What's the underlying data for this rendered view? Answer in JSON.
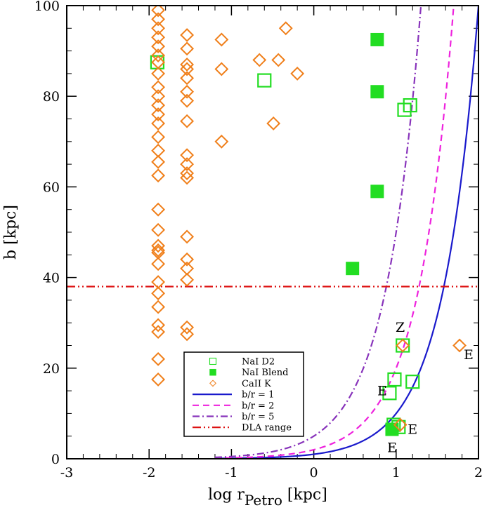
{
  "chart_data": {
    "type": "scatter",
    "title": "",
    "xlabel": "log r",
    "xlabel_sub": "Petro",
    "xlabel_unit": " [kpc]",
    "ylabel": "b [kpc]",
    "xlim": [
      -3,
      2
    ],
    "ylim": [
      0,
      100
    ],
    "xticks": [
      -3,
      -2,
      -1,
      0,
      1,
      2
    ],
    "yticks": [
      0,
      20,
      40,
      60,
      80,
      100
    ],
    "legend_position": "lower-center",
    "dla_range_b": 38,
    "series": [
      {
        "name": "NaI D2",
        "marker": "square-open",
        "color": "#22dd22",
        "points": [
          {
            "x": -1.9,
            "y": 87.5
          },
          {
            "x": -0.6,
            "y": 83.5
          },
          {
            "x": 1.1,
            "y": 77
          },
          {
            "x": 1.17,
            "y": 78
          },
          {
            "x": 1.08,
            "y": 25
          },
          {
            "x": 0.98,
            "y": 17.5
          },
          {
            "x": 1.2,
            "y": 17
          },
          {
            "x": 0.92,
            "y": 14.5
          },
          {
            "x": 0.97,
            "y": 7.5
          },
          {
            "x": 1.03,
            "y": 7
          }
        ]
      },
      {
        "name": "NaI Blend",
        "marker": "square-filled",
        "color": "#22dd22",
        "points": [
          {
            "x": 0.77,
            "y": 92.5
          },
          {
            "x": 0.77,
            "y": 81
          },
          {
            "x": 0.77,
            "y": 59
          },
          {
            "x": 0.47,
            "y": 42
          },
          {
            "x": 0.95,
            "y": 6.5
          }
        ]
      },
      {
        "name": "CaII K",
        "marker": "diamond-open",
        "color": "#f07f1a",
        "points": [
          {
            "x": -1.89,
            "y": 99
          },
          {
            "x": -1.89,
            "y": 97
          },
          {
            "x": -1.89,
            "y": 95
          },
          {
            "x": -1.89,
            "y": 93
          },
          {
            "x": -1.89,
            "y": 91
          },
          {
            "x": -1.89,
            "y": 89
          },
          {
            "x": -1.89,
            "y": 87.5
          },
          {
            "x": -1.89,
            "y": 85
          },
          {
            "x": -1.89,
            "y": 82
          },
          {
            "x": -1.89,
            "y": 80
          },
          {
            "x": -1.89,
            "y": 78
          },
          {
            "x": -1.89,
            "y": 76
          },
          {
            "x": -1.89,
            "y": 74
          },
          {
            "x": -1.89,
            "y": 71
          },
          {
            "x": -1.89,
            "y": 68
          },
          {
            "x": -1.89,
            "y": 65.5
          },
          {
            "x": -1.89,
            "y": 62.5
          },
          {
            "x": -1.89,
            "y": 55
          },
          {
            "x": -1.89,
            "y": 50.5
          },
          {
            "x": -1.89,
            "y": 47
          },
          {
            "x": -1.89,
            "y": 46
          },
          {
            "x": -1.89,
            "y": 45.5
          },
          {
            "x": -1.89,
            "y": 43
          },
          {
            "x": -1.89,
            "y": 39
          },
          {
            "x": -1.89,
            "y": 36.5
          },
          {
            "x": -1.89,
            "y": 33.5
          },
          {
            "x": -1.89,
            "y": 29.5
          },
          {
            "x": -1.89,
            "y": 28
          },
          {
            "x": -1.89,
            "y": 22
          },
          {
            "x": -1.89,
            "y": 17.5
          },
          {
            "x": -1.54,
            "y": 93.5
          },
          {
            "x": -1.54,
            "y": 90.5
          },
          {
            "x": -1.54,
            "y": 87
          },
          {
            "x": -1.54,
            "y": 86
          },
          {
            "x": -1.54,
            "y": 84
          },
          {
            "x": -1.54,
            "y": 81
          },
          {
            "x": -1.54,
            "y": 79
          },
          {
            "x": -1.54,
            "y": 74.5
          },
          {
            "x": -1.54,
            "y": 67
          },
          {
            "x": -1.54,
            "y": 65
          },
          {
            "x": -1.54,
            "y": 63
          },
          {
            "x": -1.54,
            "y": 62
          },
          {
            "x": -1.54,
            "y": 49
          },
          {
            "x": -1.54,
            "y": 44
          },
          {
            "x": -1.54,
            "y": 42
          },
          {
            "x": -1.54,
            "y": 39.5
          },
          {
            "x": -1.54,
            "y": 29
          },
          {
            "x": -1.54,
            "y": 27.5
          },
          {
            "x": -1.12,
            "y": 92.5
          },
          {
            "x": -1.12,
            "y": 86
          },
          {
            "x": -1.12,
            "y": 70
          },
          {
            "x": -0.66,
            "y": 88
          },
          {
            "x": -0.43,
            "y": 88
          },
          {
            "x": -0.34,
            "y": 95
          },
          {
            "x": -0.2,
            "y": 85
          },
          {
            "x": -0.49,
            "y": 74
          },
          {
            "x": 1.08,
            "y": 25
          },
          {
            "x": 1.05,
            "y": 7.5
          },
          {
            "x": 1.77,
            "y": 25
          }
        ]
      }
    ],
    "curves": [
      {
        "name": "b/r = 1",
        "ratio": 1,
        "color": "#1a1acc",
        "dash": "solid"
      },
      {
        "name": "b/r = 2",
        "ratio": 2,
        "color": "#ee22dd",
        "dash": "dashed"
      },
      {
        "name": "b/r = 5",
        "ratio": 5,
        "color": "#8833bb",
        "dash": "dashdot"
      },
      {
        "name": "DLA range",
        "color": "#dd1111",
        "dash": "dashdotdot"
      }
    ],
    "annotations": [
      {
        "text": "Z",
        "x": 1.05,
        "y": 28
      },
      {
        "text": "E",
        "x": 0.83,
        "y": 14
      },
      {
        "text": "E",
        "x": 1.2,
        "y": 5.5
      },
      {
        "text": "E",
        "x": 0.95,
        "y": 1.5
      },
      {
        "text": "E",
        "x": 1.88,
        "y": 22
      }
    ]
  }
}
